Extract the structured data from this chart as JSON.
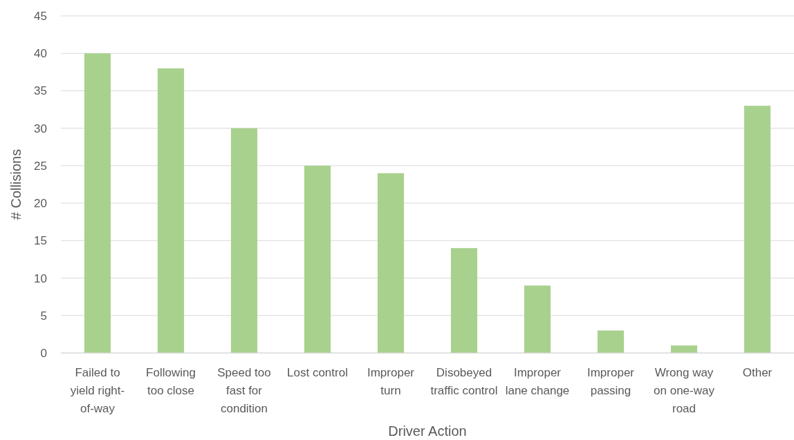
{
  "chart_data": {
    "type": "bar",
    "xlabel": "Driver Action",
    "ylabel": "# Collisions",
    "categories": [
      "Failed to yield right-of-way",
      "Following too close",
      "Speed too fast for condition",
      "Lost control",
      "Improper turn",
      "Disobeyed traffic control",
      "Improper lane change",
      "Improper passing",
      "Wrong way on one-way road",
      "Other"
    ],
    "values": [
      40,
      38,
      30,
      25,
      24,
      14,
      9,
      3,
      1,
      33
    ],
    "color": "#a9d18e",
    "ylim": [
      0,
      45
    ],
    "yticks": [
      0,
      5,
      10,
      15,
      20,
      25,
      30,
      35,
      40,
      45
    ],
    "grid": "y"
  }
}
